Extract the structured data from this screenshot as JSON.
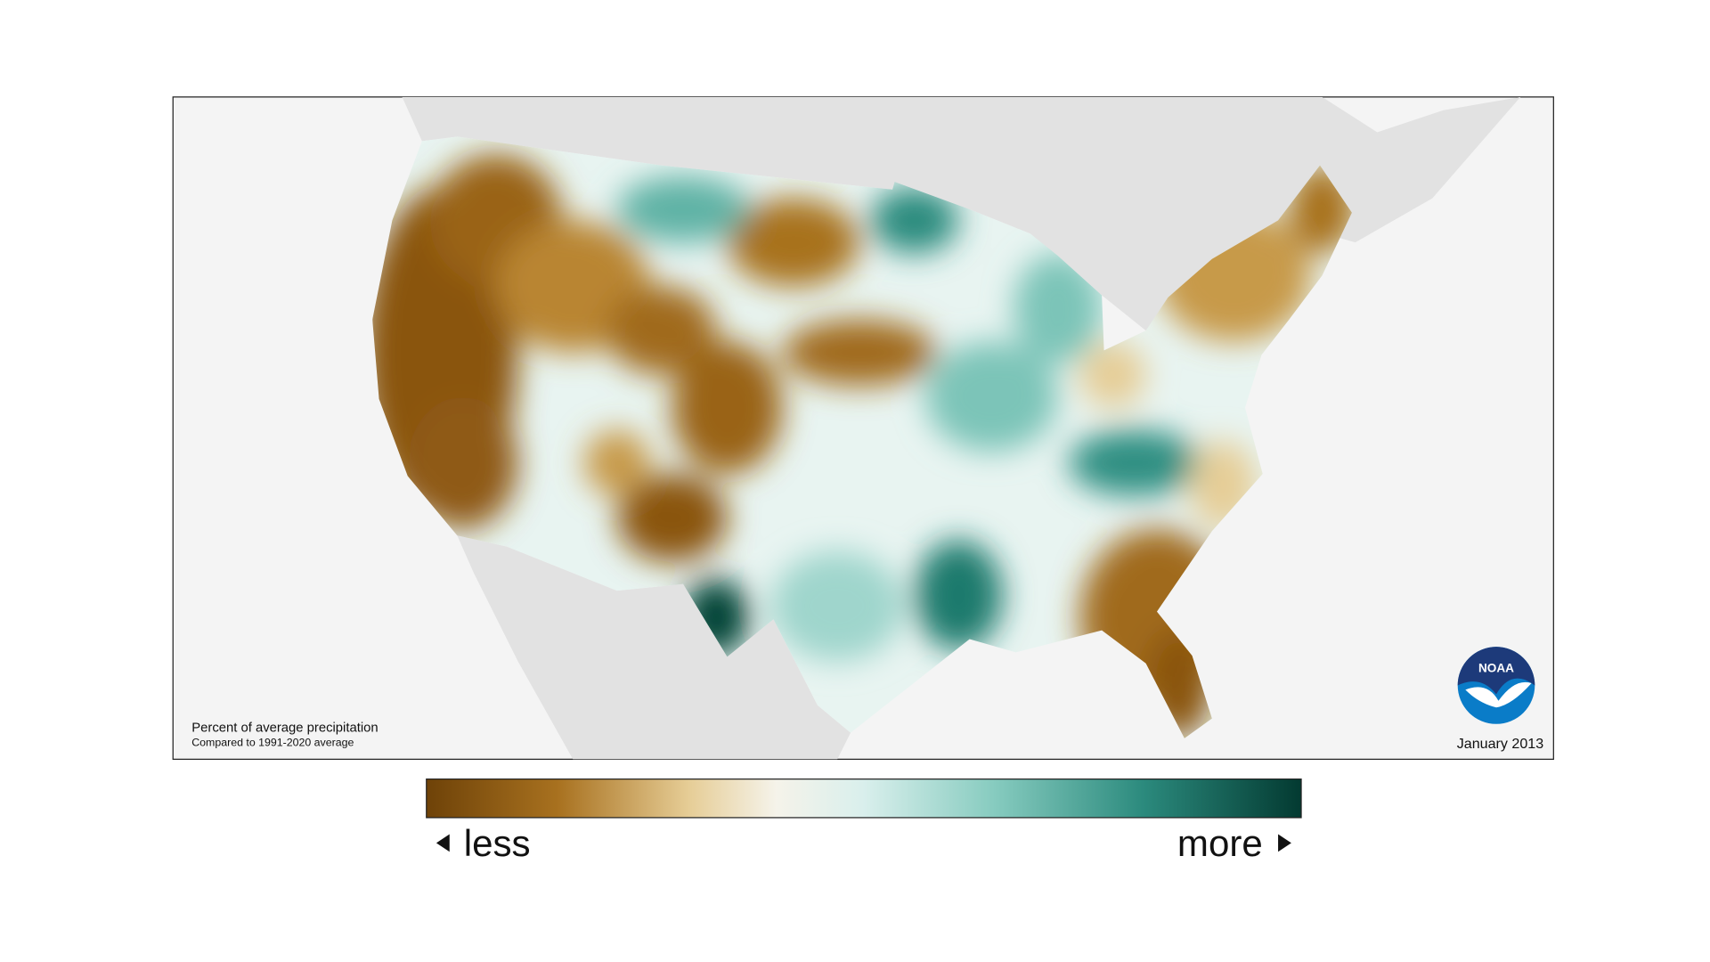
{
  "map": {
    "title": "Percent of average precipitation",
    "subtitle": "Compared to 1991-2020 average",
    "date": "January 2013",
    "logo": "NOAA"
  },
  "legend": {
    "less": "less",
    "more": "more"
  }
}
